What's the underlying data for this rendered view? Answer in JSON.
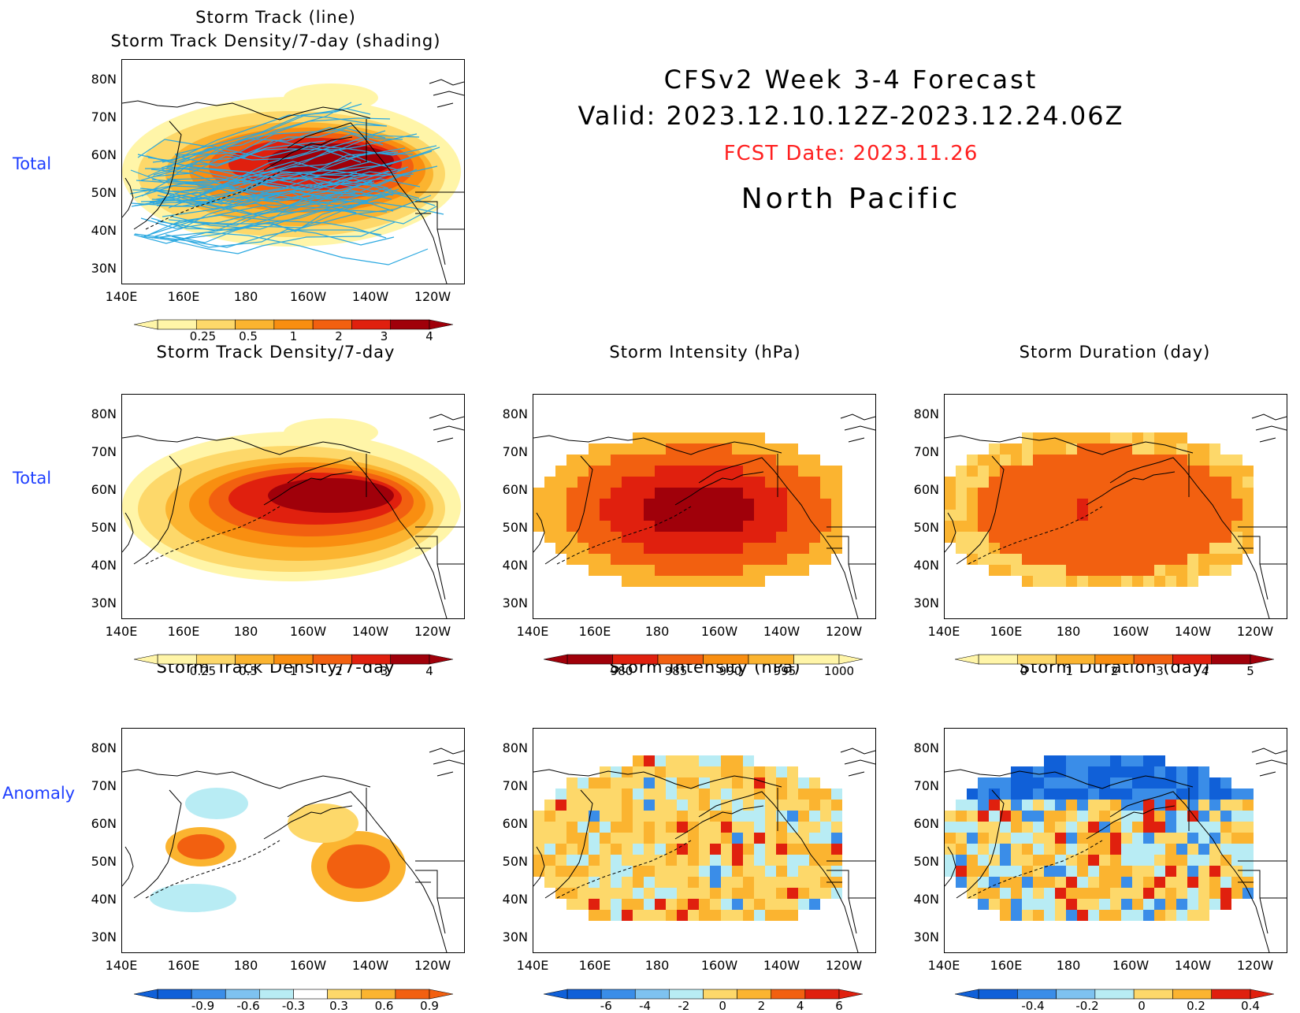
{
  "header": {
    "line1": "CFSv2 Week 3-4 Forecast",
    "line2": "Valid: 2023.12.10.12Z-2023.12.24.06Z",
    "fcst_date": "FCST Date: 2023.11.26",
    "region": "North Pacific",
    "fcst_color": "#ff2020"
  },
  "row_labels": {
    "total_top": "Total",
    "total": "Total",
    "anomaly": "Anomaly"
  },
  "axes": {
    "lat_ticks": [
      "80N",
      "70N",
      "60N",
      "50N",
      "40N",
      "30N"
    ],
    "lon_ticks": [
      "140E",
      "160E",
      "180",
      "160W",
      "140W",
      "120W"
    ]
  },
  "panels": {
    "p1": {
      "title_line1": "Storm Track (line)",
      "title_line2": "Storm Track Density/7-day (shading)",
      "cbar": [
        "0.25",
        "0.5",
        "1",
        "2",
        "3",
        "4"
      ]
    },
    "p2": {
      "title": "Storm Track Density/7-day",
      "cbar": [
        "0.25",
        "0.5",
        "1",
        "2",
        "3",
        "4"
      ]
    },
    "p3": {
      "title": "Storm Intensity (hPa)",
      "cbar": [
        "980",
        "985",
        "990",
        "995",
        "1000"
      ]
    },
    "p4": {
      "title": "Storm Duration (day)",
      "cbar": [
        "0",
        "1",
        "2",
        "3",
        "4",
        "5"
      ]
    },
    "p5": {
      "title": "Storm Track Density/7-day",
      "cbar": [
        "-0.9",
        "-0.6",
        "-0.3",
        "0.3",
        "0.6",
        "0.9"
      ]
    },
    "p6": {
      "title": "Storm Intensity (hPa)",
      "cbar": [
        "-6",
        "-4",
        "-2",
        "0",
        "2",
        "4",
        "6"
      ]
    },
    "p7": {
      "title": "Storm Duration (day)",
      "cbar": [
        "-0.4",
        "-0.2",
        "0",
        "0.2",
        "0.4"
      ]
    }
  },
  "colors": {
    "warm": [
      "#fff5a8",
      "#fdd86a",
      "#fbb430",
      "#f98e10",
      "#f26010",
      "#e0200e",
      "#a0000a"
    ],
    "cool": [
      "#1060d8",
      "#3a8de8",
      "#7ec2f0",
      "#b8ecf4"
    ],
    "track_line": "#2aa8e0"
  }
}
